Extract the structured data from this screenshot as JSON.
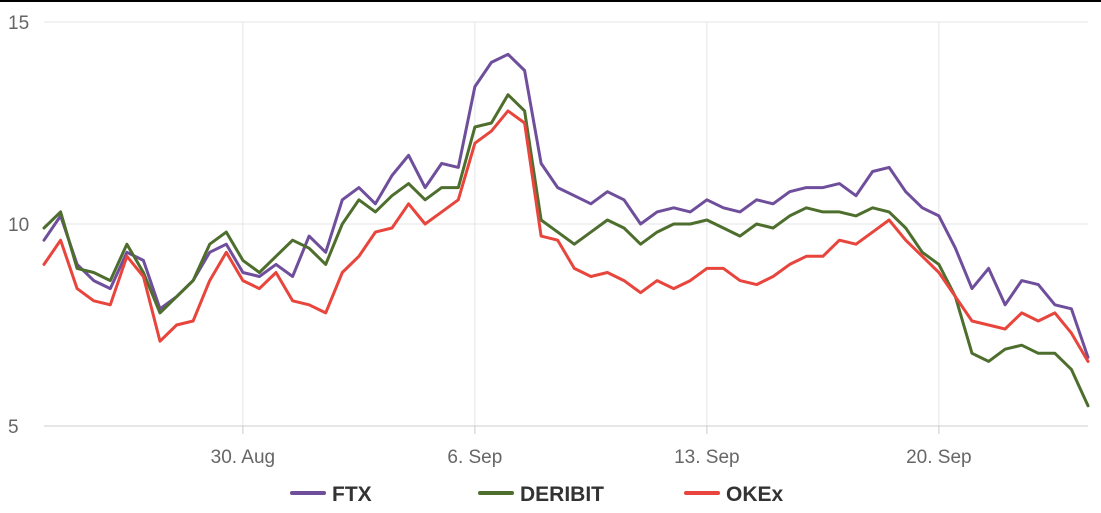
{
  "chart_data": {
    "type": "line",
    "title": "",
    "xlabel": "",
    "ylabel": "",
    "x_range": [
      "2021-08-24",
      "2021-09-24"
    ],
    "ylim": [
      5,
      15
    ],
    "y_ticks": [
      {
        "value": 15,
        "label": "15"
      },
      {
        "value": 10,
        "label": "10"
      },
      {
        "value": 5,
        "label": "5"
      }
    ],
    "x_ticks": [
      {
        "date": "2021-08-30",
        "label": "30. Aug"
      },
      {
        "date": "2021-09-06",
        "label": "6. Sep"
      },
      {
        "date": "2021-09-13",
        "label": "13. Sep"
      },
      {
        "date": "2021-09-20",
        "label": "20. Sep"
      }
    ],
    "grid": true,
    "legend": "bottom-center",
    "series": [
      {
        "name": "FTX",
        "color": "#6f4e9c",
        "points": [
          [
            "2021-08-24",
            9.6
          ],
          [
            "2021-08-24T12",
            10.2
          ],
          [
            "2021-08-25",
            9.0
          ],
          [
            "2021-08-25T12",
            8.6
          ],
          [
            "2021-08-26",
            8.4
          ],
          [
            "2021-08-26T12",
            9.3
          ],
          [
            "2021-08-27",
            9.1
          ],
          [
            "2021-08-27T12",
            7.9
          ],
          [
            "2021-08-28",
            8.2
          ],
          [
            "2021-08-28T12",
            8.6
          ],
          [
            "2021-08-29",
            9.3
          ],
          [
            "2021-08-29T12",
            9.5
          ],
          [
            "2021-08-30",
            8.8
          ],
          [
            "2021-08-30T12",
            8.7
          ],
          [
            "2021-08-31",
            9.0
          ],
          [
            "2021-08-31T12",
            8.7
          ],
          [
            "2021-09-01",
            9.7
          ],
          [
            "2021-09-01T12",
            9.3
          ],
          [
            "2021-09-02",
            10.6
          ],
          [
            "2021-09-02T12",
            10.9
          ],
          [
            "2021-09-03",
            10.5
          ],
          [
            "2021-09-03T12",
            11.2
          ],
          [
            "2021-09-04",
            11.7
          ],
          [
            "2021-09-04T12",
            10.9
          ],
          [
            "2021-09-05",
            11.5
          ],
          [
            "2021-09-05T12",
            11.4
          ],
          [
            "2021-09-06",
            13.4
          ],
          [
            "2021-09-06T12",
            14.0
          ],
          [
            "2021-09-07",
            14.2
          ],
          [
            "2021-09-07T12",
            13.8
          ],
          [
            "2021-09-08",
            11.5
          ],
          [
            "2021-09-08T12",
            10.9
          ],
          [
            "2021-09-09",
            10.7
          ],
          [
            "2021-09-09T12",
            10.5
          ],
          [
            "2021-09-10",
            10.8
          ],
          [
            "2021-09-10T12",
            10.6
          ],
          [
            "2021-09-11",
            10.0
          ],
          [
            "2021-09-11T12",
            10.3
          ],
          [
            "2021-09-12",
            10.4
          ],
          [
            "2021-09-12T12",
            10.3
          ],
          [
            "2021-09-13",
            10.6
          ],
          [
            "2021-09-13T12",
            10.4
          ],
          [
            "2021-09-14",
            10.3
          ],
          [
            "2021-09-14T12",
            10.6
          ],
          [
            "2021-09-15",
            10.5
          ],
          [
            "2021-09-15T12",
            10.8
          ],
          [
            "2021-09-16",
            10.9
          ],
          [
            "2021-09-16T12",
            10.9
          ],
          [
            "2021-09-17",
            11.0
          ],
          [
            "2021-09-17T12",
            10.7
          ],
          [
            "2021-09-18",
            11.3
          ],
          [
            "2021-09-18T12",
            11.4
          ],
          [
            "2021-09-19",
            10.8
          ],
          [
            "2021-09-19T12",
            10.4
          ],
          [
            "2021-09-20",
            10.2
          ],
          [
            "2021-09-20T12",
            9.4
          ],
          [
            "2021-09-21",
            8.4
          ],
          [
            "2021-09-21T12",
            8.9
          ],
          [
            "2021-09-22",
            8.0
          ],
          [
            "2021-09-22T12",
            8.6
          ],
          [
            "2021-09-23",
            8.5
          ],
          [
            "2021-09-23T12",
            8.0
          ],
          [
            "2021-09-24",
            7.9
          ],
          [
            "2021-09-24T12",
            6.7
          ]
        ]
      },
      {
        "name": "DERIBIT",
        "color": "#4e6e2e",
        "points": [
          [
            "2021-08-24",
            9.9
          ],
          [
            "2021-08-24T12",
            10.3
          ],
          [
            "2021-08-25",
            8.9
          ],
          [
            "2021-08-25T12",
            8.8
          ],
          [
            "2021-08-26",
            8.6
          ],
          [
            "2021-08-26T12",
            9.5
          ],
          [
            "2021-08-27",
            8.8
          ],
          [
            "2021-08-27T12",
            7.8
          ],
          [
            "2021-08-28",
            8.2
          ],
          [
            "2021-08-28T12",
            8.6
          ],
          [
            "2021-08-29",
            9.5
          ],
          [
            "2021-08-29T12",
            9.8
          ],
          [
            "2021-08-30",
            9.1
          ],
          [
            "2021-08-30T12",
            8.8
          ],
          [
            "2021-08-31",
            9.2
          ],
          [
            "2021-08-31T12",
            9.6
          ],
          [
            "2021-09-01",
            9.4
          ],
          [
            "2021-09-01T12",
            9.0
          ],
          [
            "2021-09-02",
            10.0
          ],
          [
            "2021-09-02T12",
            10.6
          ],
          [
            "2021-09-03",
            10.3
          ],
          [
            "2021-09-03T12",
            10.7
          ],
          [
            "2021-09-04",
            11.0
          ],
          [
            "2021-09-04T12",
            10.6
          ],
          [
            "2021-09-05",
            10.9
          ],
          [
            "2021-09-05T12",
            10.9
          ],
          [
            "2021-09-06",
            12.4
          ],
          [
            "2021-09-06T12",
            12.5
          ],
          [
            "2021-09-07",
            13.2
          ],
          [
            "2021-09-07T12",
            12.8
          ],
          [
            "2021-09-08",
            10.1
          ],
          [
            "2021-09-08T12",
            9.8
          ],
          [
            "2021-09-09",
            9.5
          ],
          [
            "2021-09-09T12",
            9.8
          ],
          [
            "2021-09-10",
            10.1
          ],
          [
            "2021-09-10T12",
            9.9
          ],
          [
            "2021-09-11",
            9.5
          ],
          [
            "2021-09-11T12",
            9.8
          ],
          [
            "2021-09-12",
            10.0
          ],
          [
            "2021-09-12T12",
            10.0
          ],
          [
            "2021-09-13",
            10.1
          ],
          [
            "2021-09-13T12",
            9.9
          ],
          [
            "2021-09-14",
            9.7
          ],
          [
            "2021-09-14T12",
            10.0
          ],
          [
            "2021-09-15",
            9.9
          ],
          [
            "2021-09-15T12",
            10.2
          ],
          [
            "2021-09-16",
            10.4
          ],
          [
            "2021-09-16T12",
            10.3
          ],
          [
            "2021-09-17",
            10.3
          ],
          [
            "2021-09-17T12",
            10.2
          ],
          [
            "2021-09-18",
            10.4
          ],
          [
            "2021-09-18T12",
            10.3
          ],
          [
            "2021-09-19",
            9.9
          ],
          [
            "2021-09-19T12",
            9.3
          ],
          [
            "2021-09-20",
            9.0
          ],
          [
            "2021-09-20T12",
            8.2
          ],
          [
            "2021-09-21",
            6.8
          ],
          [
            "2021-09-21T12",
            6.6
          ],
          [
            "2021-09-22",
            6.9
          ],
          [
            "2021-09-22T12",
            7.0
          ],
          [
            "2021-09-23",
            6.8
          ],
          [
            "2021-09-23T12",
            6.8
          ],
          [
            "2021-09-24",
            6.4
          ],
          [
            "2021-09-24T12",
            5.5
          ]
        ]
      },
      {
        "name": "OKEx",
        "color": "#e8453c",
        "points": [
          [
            "2021-08-24",
            9.0
          ],
          [
            "2021-08-24T12",
            9.6
          ],
          [
            "2021-08-25",
            8.4
          ],
          [
            "2021-08-25T12",
            8.1
          ],
          [
            "2021-08-26",
            8.0
          ],
          [
            "2021-08-26T12",
            9.2
          ],
          [
            "2021-08-27",
            8.7
          ],
          [
            "2021-08-27T12",
            7.1
          ],
          [
            "2021-08-28",
            7.5
          ],
          [
            "2021-08-28T12",
            7.6
          ],
          [
            "2021-08-29",
            8.6
          ],
          [
            "2021-08-29T12",
            9.3
          ],
          [
            "2021-08-30",
            8.6
          ],
          [
            "2021-08-30T12",
            8.4
          ],
          [
            "2021-08-31",
            8.8
          ],
          [
            "2021-08-31T12",
            8.1
          ],
          [
            "2021-09-01",
            8.0
          ],
          [
            "2021-09-01T12",
            7.8
          ],
          [
            "2021-09-02",
            8.8
          ],
          [
            "2021-09-02T12",
            9.2
          ],
          [
            "2021-09-03",
            9.8
          ],
          [
            "2021-09-03T12",
            9.9
          ],
          [
            "2021-09-04",
            10.5
          ],
          [
            "2021-09-04T12",
            10.0
          ],
          [
            "2021-09-05",
            10.3
          ],
          [
            "2021-09-05T12",
            10.6
          ],
          [
            "2021-09-06",
            12.0
          ],
          [
            "2021-09-06T12",
            12.3
          ],
          [
            "2021-09-07",
            12.8
          ],
          [
            "2021-09-07T12",
            12.5
          ],
          [
            "2021-09-08",
            9.7
          ],
          [
            "2021-09-08T12",
            9.6
          ],
          [
            "2021-09-09",
            8.9
          ],
          [
            "2021-09-09T12",
            8.7
          ],
          [
            "2021-09-10",
            8.8
          ],
          [
            "2021-09-10T12",
            8.6
          ],
          [
            "2021-09-11",
            8.3
          ],
          [
            "2021-09-11T12",
            8.6
          ],
          [
            "2021-09-12",
            8.4
          ],
          [
            "2021-09-12T12",
            8.6
          ],
          [
            "2021-09-13",
            8.9
          ],
          [
            "2021-09-13T12",
            8.9
          ],
          [
            "2021-09-14",
            8.6
          ],
          [
            "2021-09-14T12",
            8.5
          ],
          [
            "2021-09-15",
            8.7
          ],
          [
            "2021-09-15T12",
            9.0
          ],
          [
            "2021-09-16",
            9.2
          ],
          [
            "2021-09-16T12",
            9.2
          ],
          [
            "2021-09-17",
            9.6
          ],
          [
            "2021-09-17T12",
            9.5
          ],
          [
            "2021-09-18",
            9.8
          ],
          [
            "2021-09-18T12",
            10.1
          ],
          [
            "2021-09-19",
            9.6
          ],
          [
            "2021-09-19T12",
            9.2
          ],
          [
            "2021-09-20",
            8.8
          ],
          [
            "2021-09-20T12",
            8.2
          ],
          [
            "2021-09-21",
            7.6
          ],
          [
            "2021-09-21T12",
            7.5
          ],
          [
            "2021-09-22",
            7.4
          ],
          [
            "2021-09-22T12",
            7.8
          ],
          [
            "2021-09-23",
            7.6
          ],
          [
            "2021-09-23T12",
            7.8
          ],
          [
            "2021-09-24",
            7.3
          ],
          [
            "2021-09-24T12",
            6.6
          ]
        ]
      }
    ]
  }
}
